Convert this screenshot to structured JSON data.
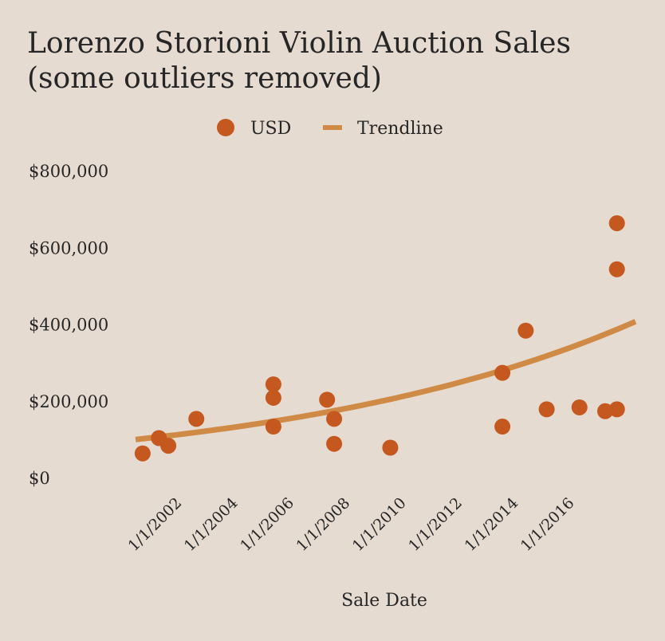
{
  "chart_data": {
    "type": "scatter",
    "title_lines": [
      "Lorenzo Storioni Violin Auction Sales",
      "(some outliers removed)"
    ],
    "xlabel": "Sale Date",
    "ylabel": "",
    "legend": {
      "placement": "top-center",
      "entries": [
        "USD",
        "Trendline"
      ]
    },
    "y_ticks": [
      "$0",
      "$200,000",
      "$400,000",
      "$600,000",
      "$800,000"
    ],
    "y_tick_values": [
      0,
      200000,
      400000,
      600000,
      800000
    ],
    "ylim": [
      0,
      800000
    ],
    "x_ticks": [
      "1/1/2002",
      "1/1/2004",
      "1/1/2006",
      "1/1/2008",
      "1/1/2010",
      "1/1/2012",
      "1/1/2014",
      "1/1/2016"
    ],
    "x_tick_values": [
      "2002-01-01",
      "2004-01-01",
      "2006-01-01",
      "2008-01-01",
      "2010-01-01",
      "2012-01-01",
      "2014-01-01",
      "2016-01-01"
    ],
    "xlim": [
      "2000-07-01",
      "2018-05-01"
    ],
    "grid": false,
    "colors": {
      "points": "#c4581f",
      "trendline": "#cf8a45"
    },
    "series": [
      {
        "name": "USD",
        "kind": "scatter",
        "points": [
          {
            "x": "2000-10-01",
            "y": 65000
          },
          {
            "x": "2001-05-01",
            "y": 105000
          },
          {
            "x": "2001-09-01",
            "y": 85000
          },
          {
            "x": "2002-09-01",
            "y": 155000
          },
          {
            "x": "2005-06-01",
            "y": 245000
          },
          {
            "x": "2005-06-01",
            "y": 210000
          },
          {
            "x": "2005-06-01",
            "y": 135000
          },
          {
            "x": "2007-05-01",
            "y": 205000
          },
          {
            "x": "2007-08-01",
            "y": 155000
          },
          {
            "x": "2007-08-01",
            "y": 90000
          },
          {
            "x": "2009-08-01",
            "y": 80000
          },
          {
            "x": "2013-08-01",
            "y": 275000
          },
          {
            "x": "2013-08-01",
            "y": 135000
          },
          {
            "x": "2014-06-01",
            "y": 385000
          },
          {
            "x": "2015-03-01",
            "y": 180000
          },
          {
            "x": "2016-05-01",
            "y": 185000
          },
          {
            "x": "2017-04-01",
            "y": 175000
          },
          {
            "x": "2017-09-01",
            "y": 545000
          },
          {
            "x": "2017-09-01",
            "y": 665000
          },
          {
            "x": "2017-09-01",
            "y": 180000
          }
        ]
      },
      {
        "name": "Trendline",
        "kind": "exponential-trend",
        "points": [
          {
            "x": "2000-07-01",
            "y": 100000
          },
          {
            "x": "2005-04-01",
            "y": 150000
          },
          {
            "x": "2013-06-01",
            "y": 275000
          },
          {
            "x": "2018-05-01",
            "y": 410000
          }
        ]
      }
    ]
  }
}
